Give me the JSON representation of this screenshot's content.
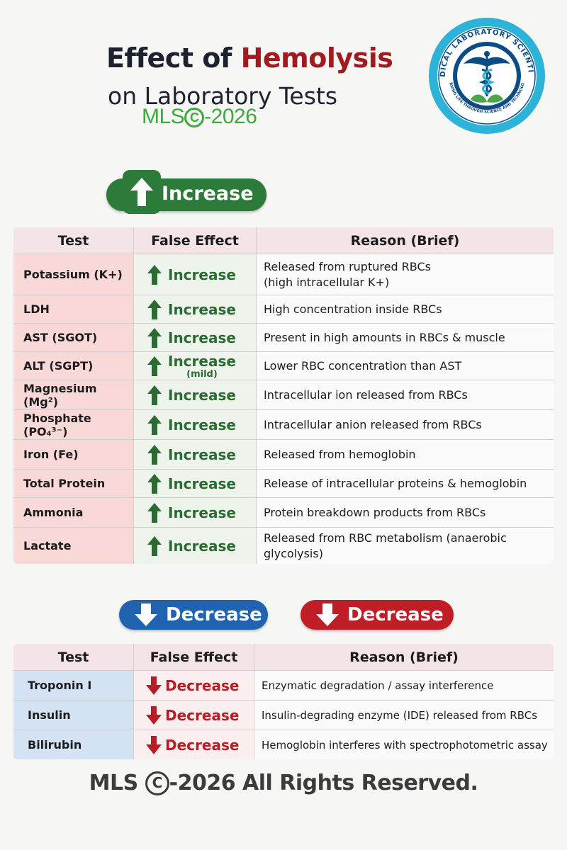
{
  "header": {
    "title_prefix": "Effect of ",
    "title_accent": "Hemolysis",
    "subtitle": "on Laboratory Tests",
    "brand_prefix": "MLS",
    "brand_copyright": "C",
    "brand_suffix": "-2026"
  },
  "logo": {
    "icon": "caduceus-icon",
    "ring_text_top": "MEDICAL LABORATORY SCIENTISTS",
    "ring_text_bottom": "SERVING LIFE THROUGH SCIENCE AND TECHNOLOGY",
    "colors": {
      "outer": "#2db2d8",
      "inner": "#0c4c86",
      "leaf": "#4aa84a"
    }
  },
  "increase_section": {
    "pill_label": "Increase",
    "columns": [
      "Test",
      "False Effect",
      "Reason (Brief)"
    ],
    "rows": [
      {
        "test": "Potassium (K+)",
        "effect": "Increase",
        "reason": "Released from ruptured RBCs",
        "reason2": "(high intracellular K+)"
      },
      {
        "test": "LDH",
        "effect": "Increase",
        "reason": "High concentration inside RBCs"
      },
      {
        "test": "AST (SGOT)",
        "effect": "Increase",
        "reason": "Present in high amounts in RBCs & muscle"
      },
      {
        "test": "ALT (SGPT)",
        "effect": "Increase",
        "effect_note": "(mild)",
        "reason": "Lower RBC concentration than AST"
      },
      {
        "test": "Magnesium (Mg²)",
        "effect": "Increase",
        "reason": "Intracellular ion released from RBCs"
      },
      {
        "test": "Phosphate (PO₄³⁻)",
        "effect": "Increase",
        "reason": "Intracellular anion released from RBCs"
      },
      {
        "test": "Iron (Fe)",
        "effect": "Increase",
        "reason": "Released from hemoglobin"
      },
      {
        "test": "Total Protein",
        "effect": "Increase",
        "reason": "Release of intracellular proteins & hemoglobin"
      },
      {
        "test": "Ammonia",
        "effect": "Increase",
        "reason": "Protein breakdown products from RBCs"
      },
      {
        "test": "Lactate",
        "effect": "Increase",
        "reason": "Released from RBC metabolism (anaerobic",
        "reason2": "glycolysis)"
      }
    ]
  },
  "decrease_section": {
    "pill_blue_label": "Decrease",
    "pill_red_label": "Decrease",
    "columns": [
      "Test",
      "False Effect",
      "Reason (Brief)"
    ],
    "rows": [
      {
        "test": "Troponin I",
        "effect": "Decrease",
        "reason": "Enzymatic degradation / assay interference"
      },
      {
        "test": "Insulin",
        "effect": "Decrease",
        "reason": "Insulin-degrading enzyme (IDE) released from RBCs"
      },
      {
        "test": "Bilirubin",
        "effect": "Decrease",
        "reason": "Hemoglobin interferes with spectrophotometric assay"
      }
    ]
  },
  "footer": {
    "prefix": "MLS ",
    "copyright": "C",
    "suffix": "-2026 All Rights Reserved."
  },
  "colors": {
    "increase_green": "#2d7b3a",
    "decrease_blue": "#1f63b1",
    "decrease_red": "#c01e27",
    "title_accent": "#a01a1e"
  }
}
